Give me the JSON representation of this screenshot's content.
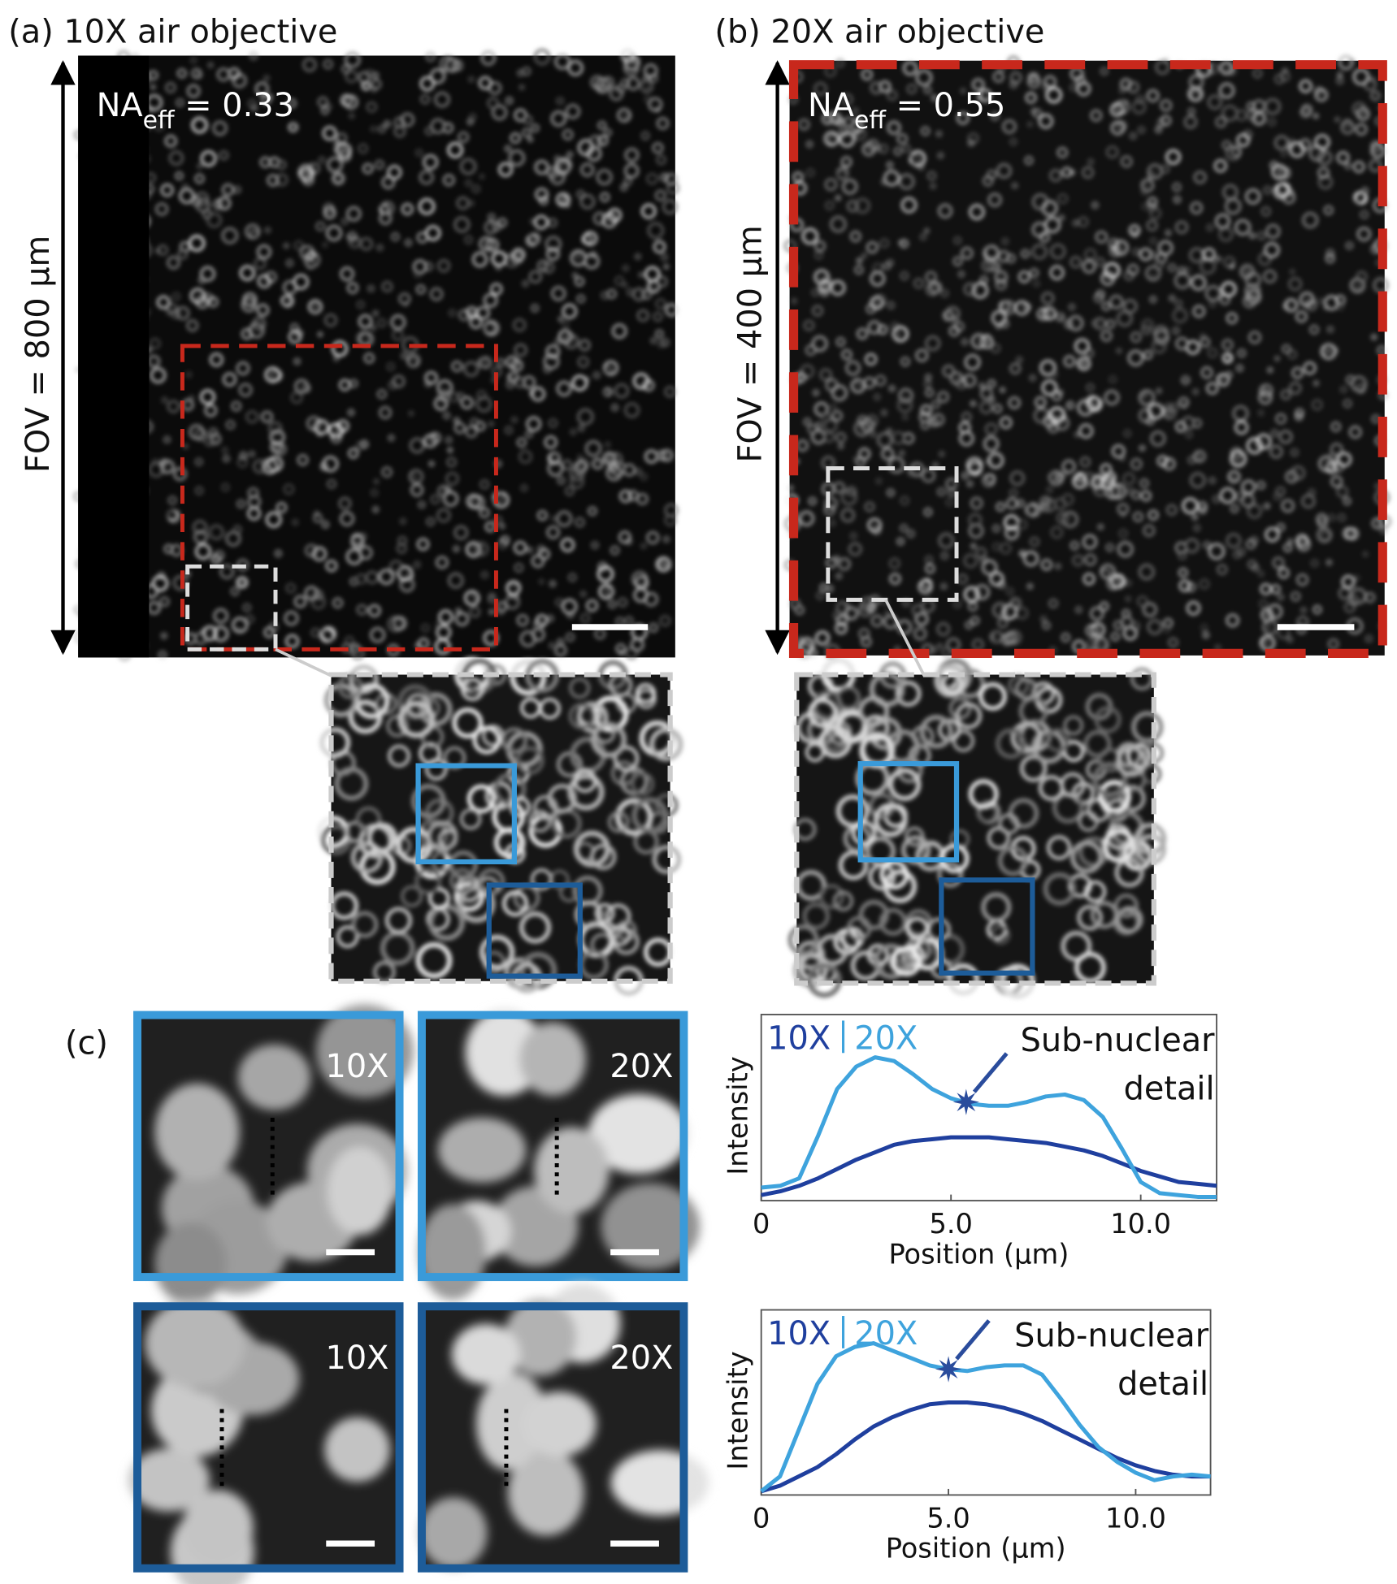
{
  "panel_a": {
    "label": "(a) 10X air objective",
    "fov": "FOV = 800 µm",
    "na": "NA",
    "na_sub": "eff",
    "na_value": " = 0.33"
  },
  "panel_b": {
    "label": "(b) 20X air objective",
    "fov": "FOV = 400 µm",
    "na": "NA",
    "na_sub": "eff",
    "na_value": " = 0.55"
  },
  "panel_c": {
    "label": "(c)",
    "crop_labels": [
      "10X",
      "20X",
      "10X",
      "20X"
    ]
  },
  "chart_data": [
    {
      "type": "line",
      "xlabel": "Position (µm)",
      "ylabel": "Intensity",
      "annotation": {
        "lines": [
          "Sub-nuclear",
          "detail"
        ],
        "x": 5.4,
        "y": 0.53
      },
      "x": [
        0,
        0.5,
        1,
        1.5,
        2,
        2.5,
        3,
        3.5,
        4,
        4.5,
        5,
        5.5,
        6,
        6.5,
        7,
        7.5,
        8,
        8.5,
        9,
        9.5,
        10,
        10.5,
        11,
        11.5,
        12
      ],
      "series": [
        {
          "name": "10X",
          "color": "#1f3f9e",
          "values": [
            0.03,
            0.05,
            0.08,
            0.12,
            0.17,
            0.22,
            0.26,
            0.3,
            0.32,
            0.33,
            0.34,
            0.34,
            0.34,
            0.33,
            0.32,
            0.31,
            0.29,
            0.27,
            0.24,
            0.2,
            0.16,
            0.13,
            0.1,
            0.09,
            0.08
          ]
        },
        {
          "name": "20X",
          "color": "#3ea3dd",
          "values": [
            0.07,
            0.08,
            0.12,
            0.35,
            0.6,
            0.72,
            0.77,
            0.75,
            0.68,
            0.6,
            0.55,
            0.52,
            0.51,
            0.51,
            0.53,
            0.56,
            0.57,
            0.54,
            0.45,
            0.28,
            0.1,
            0.04,
            0.03,
            0.02,
            0.02
          ]
        }
      ],
      "xlim": [
        0,
        12
      ],
      "ylim": [
        0,
        1
      ],
      "xticks": [
        0,
        {
          "value": 5,
          "label": "5.0"
        },
        {
          "value": 10,
          "label": "10.0"
        }
      ]
    },
    {
      "type": "line",
      "xlabel": "Position (µm)",
      "ylabel": "Intensity",
      "annotation": {
        "lines": [
          "Sub-nuclear",
          "detail"
        ],
        "x": 5,
        "y": 0.68
      },
      "x": [
        0,
        0.5,
        1,
        1.5,
        2,
        2.5,
        3,
        3.5,
        4,
        4.5,
        5,
        5.5,
        6,
        6.5,
        7,
        7.5,
        8,
        8.5,
        9,
        9.5,
        10,
        10.5,
        11,
        11.5,
        12
      ],
      "series": [
        {
          "name": "10X",
          "color": "#1f3f9e",
          "values": [
            0.02,
            0.05,
            0.1,
            0.15,
            0.22,
            0.3,
            0.37,
            0.42,
            0.46,
            0.49,
            0.5,
            0.5,
            0.49,
            0.47,
            0.44,
            0.4,
            0.35,
            0.3,
            0.25,
            0.2,
            0.16,
            0.13,
            0.11,
            0.1,
            0.1
          ]
        },
        {
          "name": "20X",
          "color": "#3ea3dd",
          "values": [
            0.02,
            0.1,
            0.35,
            0.6,
            0.75,
            0.8,
            0.82,
            0.78,
            0.74,
            0.7,
            0.68,
            0.67,
            0.69,
            0.7,
            0.7,
            0.65,
            0.52,
            0.38,
            0.26,
            0.18,
            0.12,
            0.08,
            0.1,
            0.11,
            0.1
          ]
        }
      ],
      "xlim": [
        0,
        12
      ],
      "ylim": [
        0,
        1
      ],
      "xticks": [
        0,
        {
          "value": 5,
          "label": "5.0"
        },
        {
          "value": 10,
          "label": "10.0"
        }
      ]
    }
  ]
}
